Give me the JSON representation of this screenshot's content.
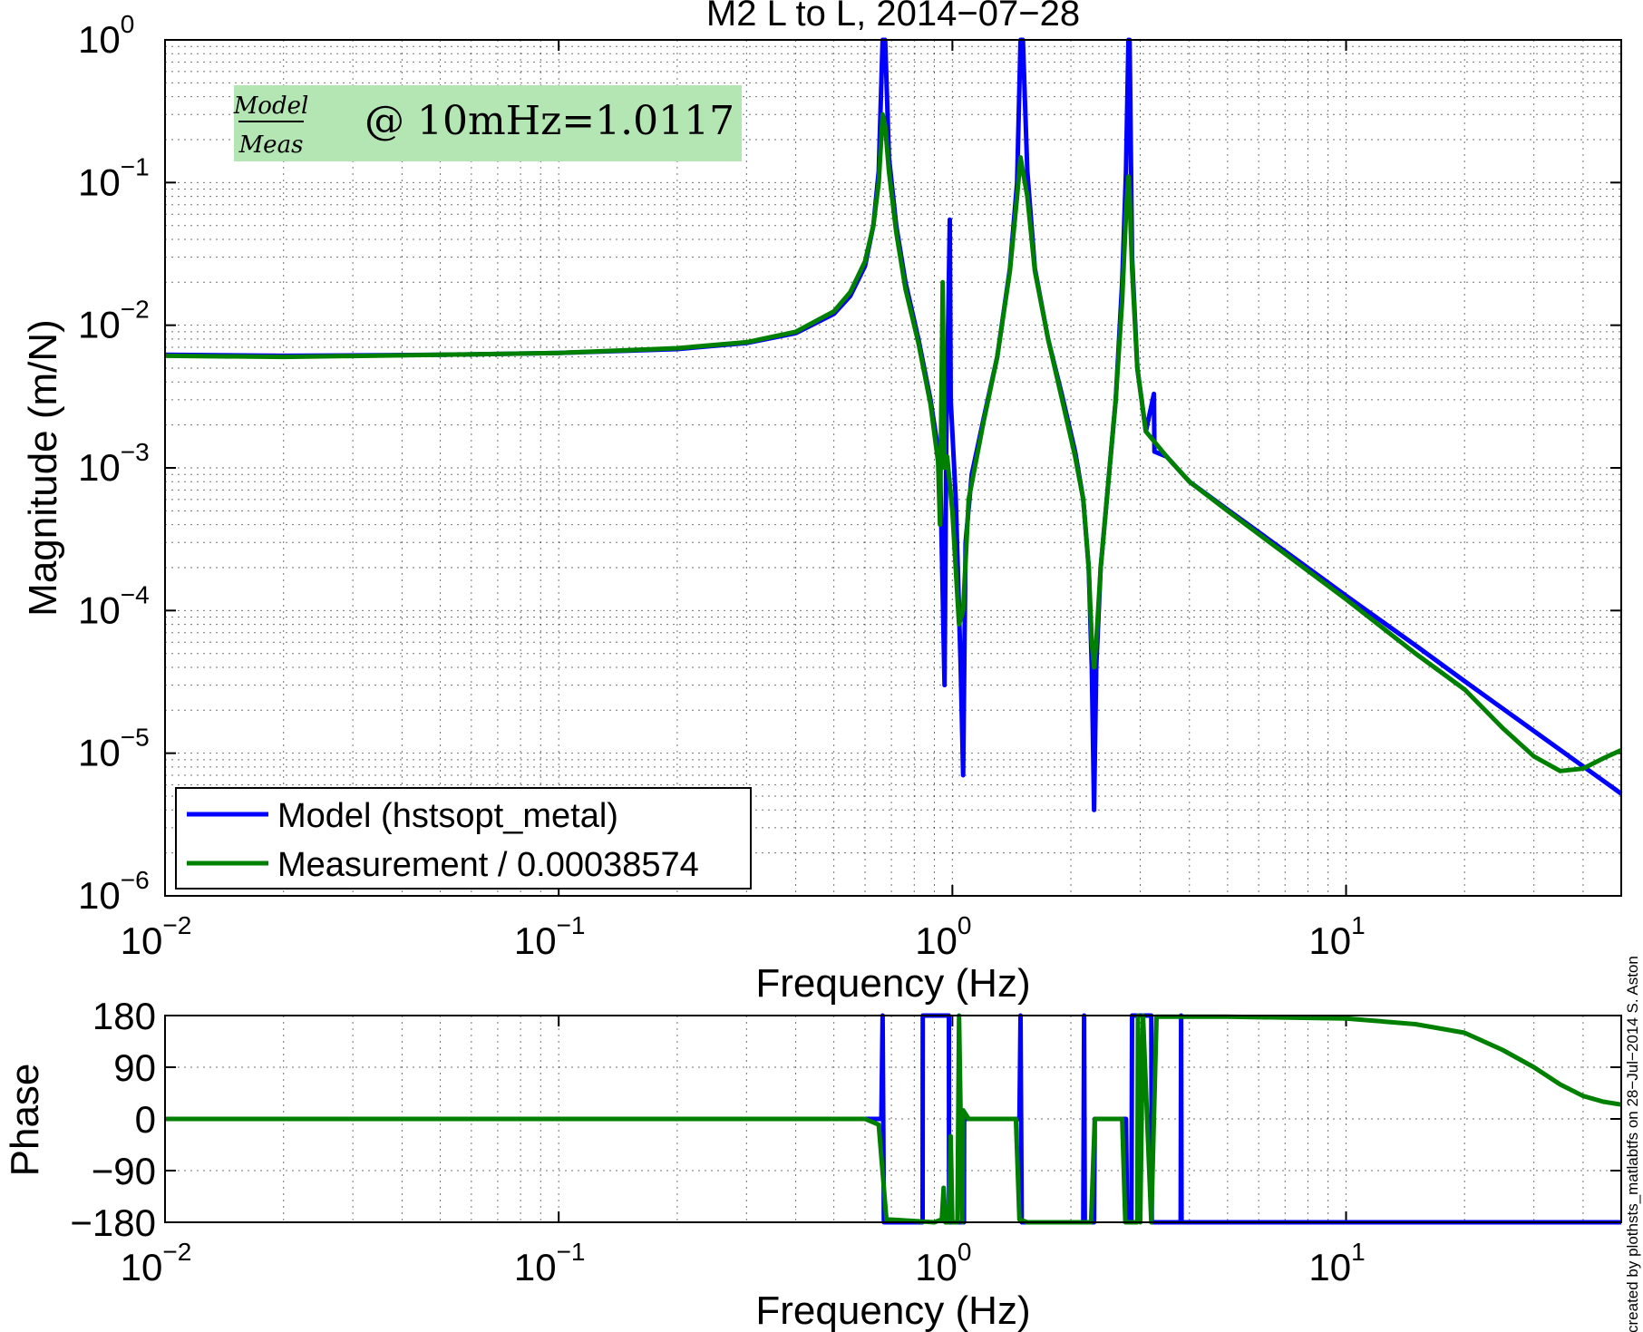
{
  "chart_data": [
    {
      "type": "line",
      "title": "M2 L to L, 2014−07−28",
      "xlabel": "Frequency (Hz)",
      "ylabel": "Magnitude (m/N)",
      "xscale": "log",
      "yscale": "log",
      "xlim": [
        0.01,
        50
      ],
      "ylim": [
        1e-06,
        1
      ],
      "grid": true,
      "legend": "bottom-left",
      "x_ticks": [
        {
          "base": "10",
          "exp": "−2",
          "value": 0.01
        },
        {
          "base": "10",
          "exp": "−1",
          "value": 0.1
        },
        {
          "base": "10",
          "exp": "0",
          "value": 1
        },
        {
          "base": "10",
          "exp": "1",
          "value": 10
        }
      ],
      "y_ticks": [
        {
          "base": "10",
          "exp": "0",
          "value": 1
        },
        {
          "base": "10",
          "exp": "−1",
          "value": 0.1
        },
        {
          "base": "10",
          "exp": "−2",
          "value": 0.01
        },
        {
          "base": "10",
          "exp": "−3",
          "value": 0.001
        },
        {
          "base": "10",
          "exp": "−4",
          "value": 0.0001
        },
        {
          "base": "10",
          "exp": "−5",
          "value": 1e-05
        },
        {
          "base": "10",
          "exp": "−6",
          "value": 1e-06
        }
      ],
      "annotation": {
        "numerator": "Model",
        "denominator": "Meas",
        "text": "@ 10mHz=1.0117",
        "background": "#b3e6b3"
      },
      "series": [
        {
          "name": "Model (hstsopt_metal)",
          "color": "#0000ff",
          "points": [
            [
              0.01,
              0.0062
            ],
            [
              0.02,
              0.0061
            ],
            [
              0.05,
              0.0062
            ],
            [
              0.1,
              0.0064
            ],
            [
              0.2,
              0.0068
            ],
            [
              0.3,
              0.0075
            ],
            [
              0.4,
              0.0088
            ],
            [
              0.5,
              0.012
            ],
            [
              0.55,
              0.016
            ],
            [
              0.6,
              0.026
            ],
            [
              0.63,
              0.05
            ],
            [
              0.65,
              0.12
            ],
            [
              0.665,
              1
            ],
            [
              0.675,
              1
            ],
            [
              0.69,
              0.15
            ],
            [
              0.72,
              0.05
            ],
            [
              0.76,
              0.02
            ],
            [
              0.82,
              0.008
            ],
            [
              0.88,
              0.003
            ],
            [
              0.93,
              0.0011
            ],
            [
              0.955,
              3e-05
            ],
            [
              0.965,
              0.0015
            ],
            [
              0.985,
              0.055
            ],
            [
              0.99,
              0.003
            ],
            [
              1.02,
              0.0006
            ],
            [
              1.05,
              4e-05
            ],
            [
              1.065,
              7e-06
            ],
            [
              1.08,
              0.0003
            ],
            [
              1.12,
              0.0009
            ],
            [
              1.2,
              0.0022
            ],
            [
              1.3,
              0.006
            ],
            [
              1.4,
              0.025
            ],
            [
              1.46,
              0.1
            ],
            [
              1.49,
              1
            ],
            [
              1.51,
              1
            ],
            [
              1.55,
              0.12
            ],
            [
              1.62,
              0.025
            ],
            [
              1.75,
              0.008
            ],
            [
              1.9,
              0.0032
            ],
            [
              2.05,
              0.0013
            ],
            [
              2.15,
              0.0006
            ],
            [
              2.22,
              0.0002
            ],
            [
              2.26,
              4e-05
            ],
            [
              2.29,
              4e-06
            ],
            [
              2.32,
              4e-05
            ],
            [
              2.38,
              0.0002
            ],
            [
              2.5,
              0.0009
            ],
            [
              2.6,
              0.003
            ],
            [
              2.7,
              0.02
            ],
            [
              2.76,
              0.12
            ],
            [
              2.8,
              1
            ],
            [
              2.82,
              1
            ],
            [
              2.86,
              0.03
            ],
            [
              2.95,
              0.005
            ],
            [
              3.1,
              0.0018
            ],
            [
              3.25,
              0.0033
            ],
            [
              3.26,
              0.0013
            ],
            [
              3.5,
              0.0012
            ],
            [
              4,
              0.0008
            ],
            [
              5,
              0.00051
            ],
            [
              7,
              0.00026
            ],
            [
              10,
              0.000127
            ],
            [
              15,
              5.7e-05
            ],
            [
              20,
              3.2e-05
            ],
            [
              30,
              1.43e-05
            ],
            [
              40,
              8.1e-06
            ],
            [
              50,
              5.2e-06
            ]
          ]
        },
        {
          "name": "Measurement / 0.00038574",
          "color": "#008000",
          "points": [
            [
              0.01,
              0.0061
            ],
            [
              0.02,
              0.006
            ],
            [
              0.05,
              0.0062
            ],
            [
              0.1,
              0.0064
            ],
            [
              0.2,
              0.0069
            ],
            [
              0.3,
              0.0076
            ],
            [
              0.4,
              0.009
            ],
            [
              0.5,
              0.0125
            ],
            [
              0.55,
              0.017
            ],
            [
              0.6,
              0.028
            ],
            [
              0.63,
              0.05
            ],
            [
              0.65,
              0.1
            ],
            [
              0.665,
              0.3
            ],
            [
              0.675,
              0.25
            ],
            [
              0.69,
              0.12
            ],
            [
              0.72,
              0.045
            ],
            [
              0.76,
              0.018
            ],
            [
              0.82,
              0.0075
            ],
            [
              0.88,
              0.0028
            ],
            [
              0.92,
              0.0011
            ],
            [
              0.93,
              0.0004
            ],
            [
              0.945,
              0.02
            ],
            [
              0.955,
              0.001
            ],
            [
              0.97,
              0.0012
            ],
            [
              1.0,
              0.0005
            ],
            [
              1.04,
              8e-05
            ],
            [
              1.065,
              0.0001
            ],
            [
              1.1,
              0.0006
            ],
            [
              1.2,
              0.0021
            ],
            [
              1.3,
              0.006
            ],
            [
              1.4,
              0.024
            ],
            [
              1.46,
              0.08
            ],
            [
              1.49,
              0.15
            ],
            [
              1.51,
              0.12
            ],
            [
              1.55,
              0.08
            ],
            [
              1.62,
              0.024
            ],
            [
              1.75,
              0.008
            ],
            [
              1.9,
              0.003
            ],
            [
              2.05,
              0.0012
            ],
            [
              2.15,
              0.0006
            ],
            [
              2.22,
              0.0002
            ],
            [
              2.26,
              6e-05
            ],
            [
              2.29,
              4e-05
            ],
            [
              2.32,
              6e-05
            ],
            [
              2.38,
              0.0002
            ],
            [
              2.5,
              0.0009
            ],
            [
              2.6,
              0.003
            ],
            [
              2.7,
              0.015
            ],
            [
              2.76,
              0.06
            ],
            [
              2.8,
              0.11
            ],
            [
              2.82,
              0.08
            ],
            [
              2.86,
              0.025
            ],
            [
              2.95,
              0.005
            ],
            [
              3.1,
              0.0018
            ],
            [
              3.5,
              0.0012
            ],
            [
              4,
              0.0008
            ],
            [
              5,
              0.0005
            ],
            [
              7,
              0.00025
            ],
            [
              10,
              0.00012
            ],
            [
              15,
              5e-05
            ],
            [
              20,
              2.8e-05
            ],
            [
              25,
              1.5e-05
            ],
            [
              30,
              9.5e-06
            ],
            [
              35,
              7.5e-06
            ],
            [
              40,
              7.8e-06
            ],
            [
              45,
              9.2e-06
            ],
            [
              50,
              1.05e-05
            ]
          ]
        }
      ]
    },
    {
      "type": "line",
      "xlabel": "Frequency (Hz)",
      "ylabel": "Phase",
      "xscale": "log",
      "xlim": [
        0.01,
        50
      ],
      "ylim": [
        -180,
        180
      ],
      "yticks": [
        "180",
        "90",
        "0",
        "−90",
        "−180"
      ],
      "ytick_values": [
        180,
        90,
        0,
        -90,
        -180
      ],
      "x_ticks": [
        {
          "base": "10",
          "exp": "−2",
          "value": 0.01
        },
        {
          "base": "10",
          "exp": "−1",
          "value": 0.1
        },
        {
          "base": "10",
          "exp": "0",
          "value": 1
        },
        {
          "base": "10",
          "exp": "1",
          "value": 10
        }
      ],
      "grid": true,
      "series": [
        {
          "name": "Model (hstsopt_metal)",
          "color": "#0000ff",
          "points": [
            [
              0.01,
              0
            ],
            [
              0.66,
              0
            ],
            [
              0.665,
              180
            ],
            [
              0.67,
              -180
            ],
            [
              0.84,
              -180
            ],
            [
              0.841,
              180
            ],
            [
              0.98,
              180
            ],
            [
              0.981,
              -180
            ],
            [
              1.07,
              -180
            ],
            [
              1.071,
              0
            ],
            [
              1.48,
              0
            ],
            [
              1.49,
              180
            ],
            [
              1.5,
              -180
            ],
            [
              2.15,
              -180
            ],
            [
              2.16,
              180
            ],
            [
              2.17,
              -180
            ],
            [
              2.29,
              -180
            ],
            [
              2.3,
              0
            ],
            [
              2.76,
              0
            ],
            [
              2.78,
              -180
            ],
            [
              2.85,
              -180
            ],
            [
              2.86,
              180
            ],
            [
              3.2,
              180
            ],
            [
              3.21,
              -180
            ],
            [
              3.8,
              -180
            ],
            [
              3.81,
              180
            ],
            [
              3.82,
              -180
            ],
            [
              50,
              -180
            ]
          ]
        },
        {
          "name": "Measurement / 0.00038574",
          "color": "#008000",
          "points": [
            [
              0.01,
              0
            ],
            [
              0.6,
              0
            ],
            [
              0.65,
              -10
            ],
            [
              0.68,
              -175
            ],
            [
              0.9,
              -180
            ],
            [
              0.94,
              -175
            ],
            [
              0.95,
              -120
            ],
            [
              0.96,
              -180
            ],
            [
              0.98,
              -180
            ],
            [
              0.99,
              -30
            ],
            [
              1.0,
              -180
            ],
            [
              1.03,
              -180
            ],
            [
              1.04,
              180
            ],
            [
              1.06,
              -180
            ],
            [
              1.065,
              15
            ],
            [
              1.1,
              0
            ],
            [
              1.45,
              0
            ],
            [
              1.48,
              -175
            ],
            [
              1.55,
              -180
            ],
            [
              2.25,
              -180
            ],
            [
              2.3,
              0
            ],
            [
              2.7,
              0
            ],
            [
              2.75,
              -180
            ],
            [
              2.95,
              -180
            ],
            [
              2.96,
              180
            ],
            [
              3.0,
              -180
            ],
            [
              3.05,
              180
            ],
            [
              3.2,
              -180
            ],
            [
              3.3,
              178
            ],
            [
              5,
              178
            ],
            [
              10,
              175
            ],
            [
              15,
              165
            ],
            [
              20,
              150
            ],
            [
              25,
              120
            ],
            [
              30,
              90
            ],
            [
              35,
              60
            ],
            [
              40,
              40
            ],
            [
              45,
              30
            ],
            [
              50,
              25
            ]
          ]
        }
      ]
    }
  ],
  "watermark": "created by plothsts_matlabtfs on 28−Jul−2014 S. Aston"
}
